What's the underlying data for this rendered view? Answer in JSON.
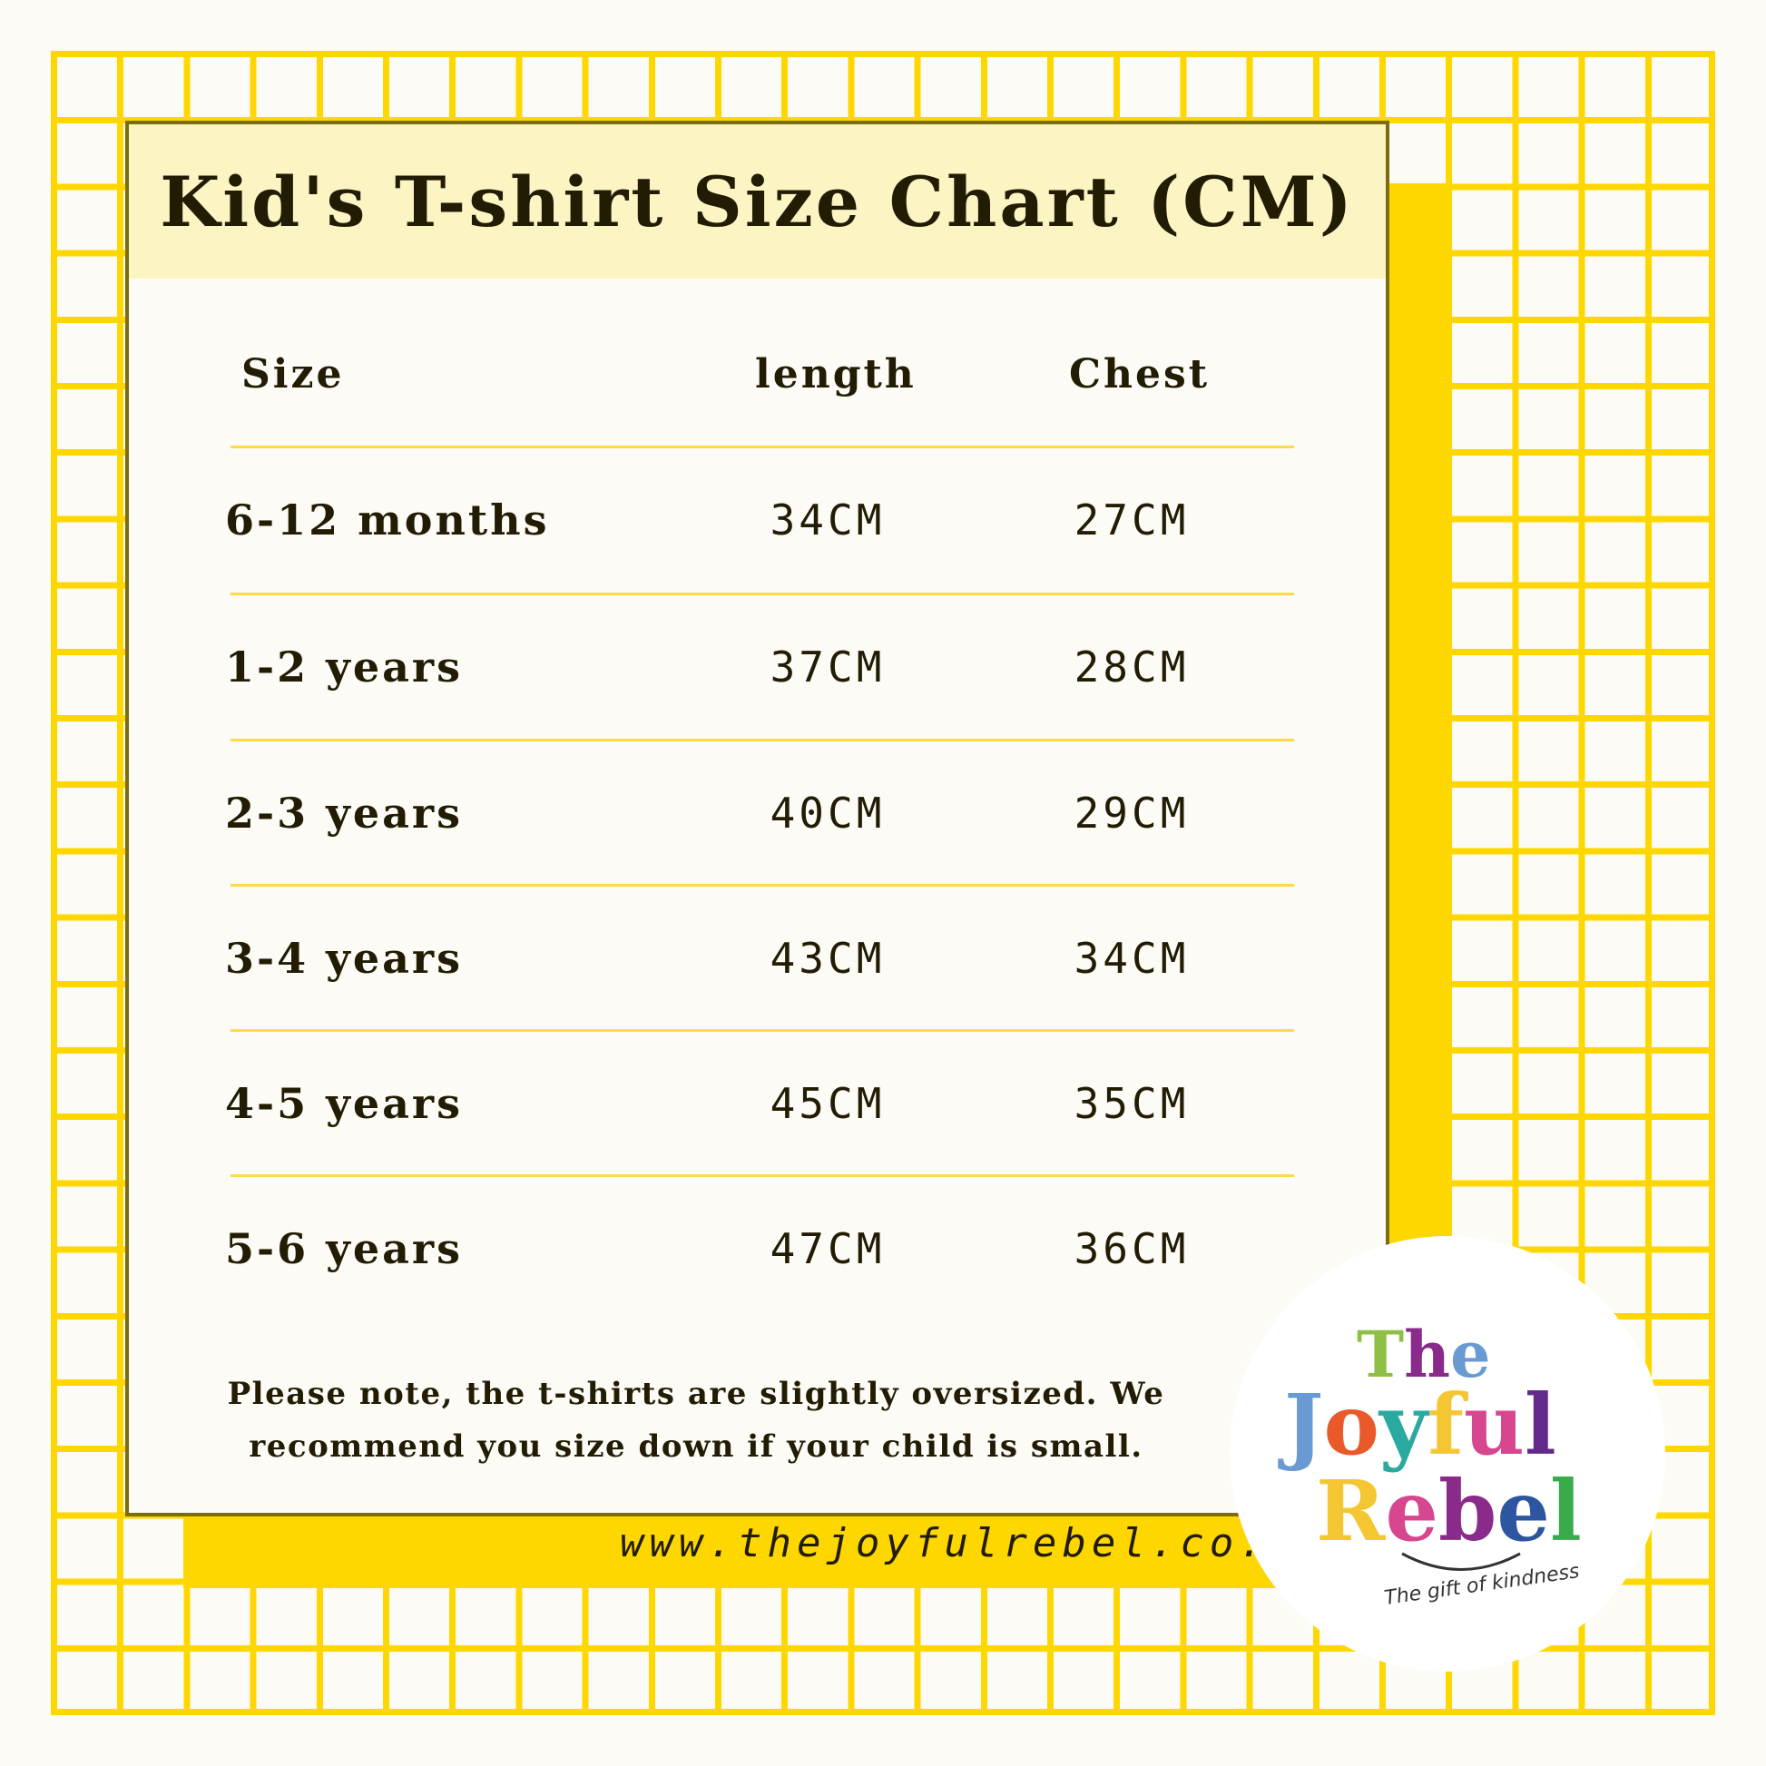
{
  "title": "Kid's T-shirt Size Chart (CM)",
  "table": {
    "headers": [
      "Size",
      "length",
      "Chest"
    ],
    "rows": [
      {
        "size": "6-12 months",
        "length": "34CM",
        "chest": "27CM"
      },
      {
        "size": "1-2 years",
        "length": "37CM",
        "chest": "28CM"
      },
      {
        "size": "2-3 years",
        "length": "40CM",
        "chest": "29CM"
      },
      {
        "size": "3-4 years",
        "length": "43CM",
        "chest": "34CM"
      },
      {
        "size": "4-5 years",
        "length": "45CM",
        "chest": "35CM"
      },
      {
        "size": "5-6 years",
        "length": "47CM",
        "chest": "36CM"
      }
    ]
  },
  "note": {
    "line1": "Please note, the t-shirts are slightly oversized.  We",
    "line2": "recommend you size down if your child is small."
  },
  "url": "www.thejoyfulrebel.co.uk",
  "logo": {
    "line1": "The",
    "line2": "Joyful",
    "line3": "Rebel",
    "tagline": "The gift of kindness"
  },
  "colors": {
    "grid": "#ffd700",
    "title_band": "#fdf4c4",
    "text": "#221c05",
    "frame": "#7d6c0d"
  }
}
